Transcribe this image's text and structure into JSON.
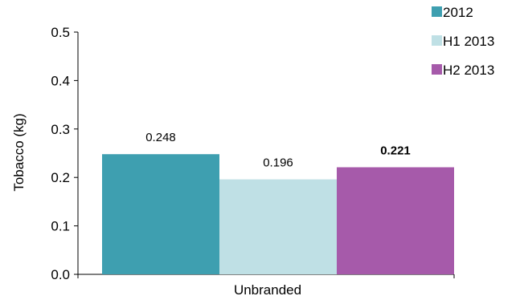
{
  "chart_data": {
    "type": "bar",
    "categories": [
      "Unbranded"
    ],
    "series": [
      {
        "name": "2012",
        "values": [
          0.248
        ],
        "color": "#3e9fb0",
        "label": "0.248",
        "label_bold": false
      },
      {
        "name": "H1 2013",
        "values": [
          0.196
        ],
        "color": "#bfe0e5",
        "label": "0.196",
        "label_bold": false
      },
      {
        "name": "H2 2013",
        "values": [
          0.221
        ],
        "color": "#a65aaa",
        "label": "0.221",
        "label_bold": true
      }
    ],
    "ylabel": "Tobacco (kg)",
    "xlabel": "",
    "ylim": [
      0,
      0.5
    ],
    "yticks": [
      "0.0",
      "0.1",
      "0.2",
      "0.3",
      "0.4",
      "0.5"
    ],
    "grid": false,
    "legend_position": "top-right"
  }
}
